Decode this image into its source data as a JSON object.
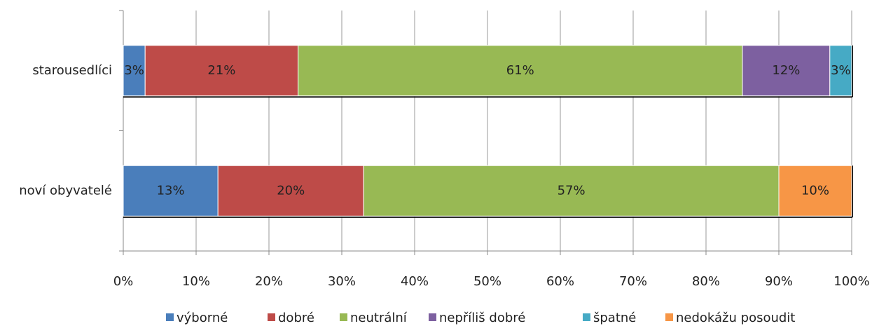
{
  "chart_data": {
    "type": "stacked_bar_horizontal",
    "categories": [
      "starousedlíci",
      "noví obyvatelé"
    ],
    "series": [
      {
        "name": "výborné",
        "color": "#4a7ebb",
        "values": [
          3,
          13
        ],
        "value_labels": [
          "3%",
          "13%"
        ]
      },
      {
        "name": "dobré",
        "color": "#be4b48",
        "values": [
          21,
          20
        ],
        "value_labels": [
          "21%",
          "20%"
        ]
      },
      {
        "name": "neutrální",
        "color": "#98b954",
        "values": [
          61,
          57
        ],
        "value_labels": [
          "61%",
          "57%"
        ]
      },
      {
        "name": "nepříliš dobré",
        "color": "#7d60a0",
        "values": [
          12,
          null
        ],
        "value_labels": [
          "12%",
          null
        ]
      },
      {
        "name": "špatné",
        "color": "#46aac5",
        "values": [
          3,
          null
        ],
        "value_labels": [
          "3%",
          null
        ]
      },
      {
        "name": "nedokážu posoudit",
        "color": "#f79646",
        "values": [
          null,
          10
        ],
        "value_labels": [
          null,
          "10%"
        ]
      }
    ],
    "xlim": [
      0,
      100
    ],
    "xticks": [
      {
        "value": 0,
        "label": "0%"
      },
      {
        "value": 10,
        "label": "10%"
      },
      {
        "value": 20,
        "label": "20%"
      },
      {
        "value": 30,
        "label": "30%"
      },
      {
        "value": 40,
        "label": "40%"
      },
      {
        "value": 50,
        "label": "50%"
      },
      {
        "value": 60,
        "label": "60%"
      },
      {
        "value": 70,
        "label": "70%"
      },
      {
        "value": 80,
        "label": "80%"
      },
      {
        "value": 90,
        "label": "90%"
      },
      {
        "value": 100,
        "label": "100%"
      }
    ],
    "grid": true
  }
}
